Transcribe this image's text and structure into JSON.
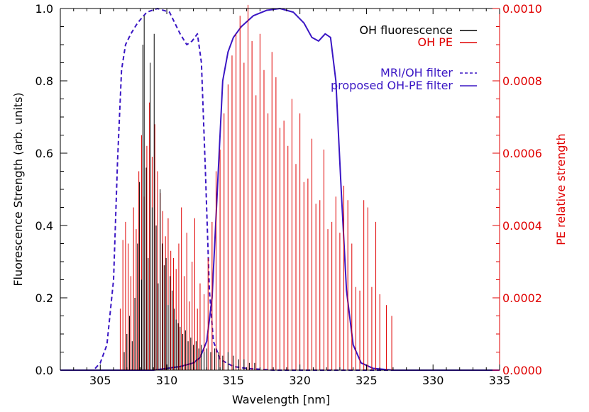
{
  "chart_data": {
    "type": "line",
    "title": "",
    "xlabel": "Wavelength [nm]",
    "ylabel": "Fluorescence Strength (arb. units)",
    "y2label": "PE relative strength",
    "xlim": [
      302,
      335
    ],
    "ylim": [
      0,
      1.0
    ],
    "y2lim": [
      0,
      0.001
    ],
    "xticks": [
      305,
      310,
      315,
      320,
      325,
      330,
      335
    ],
    "xtick_labels": [
      "305",
      "310",
      "315",
      "320",
      "325",
      "330",
      "335"
    ],
    "yticks": [
      0.0,
      0.2,
      0.4,
      0.6,
      0.8,
      1.0
    ],
    "ytick_labels": [
      "0.0",
      "0.2",
      "0.4",
      "0.6",
      "0.8",
      "1.0"
    ],
    "y2ticks": [
      0.0,
      0.0002,
      0.0004,
      0.0006,
      0.0008,
      0.001
    ],
    "y2tick_labels": [
      "0.0000",
      "0.0002",
      "0.0004",
      "0.0006",
      "0.0008",
      "0.0010"
    ],
    "colors": {
      "fluorescence": "#000000",
      "pe": "#e00000",
      "filter": "#3a16c4",
      "axis_left": "#000000",
      "axis_right": "#e00000"
    },
    "legend_position": "top-right",
    "legend": [
      {
        "label": "OH fluorescence",
        "series": "oh_fluorescence"
      },
      {
        "label": "OH PE",
        "series": "oh_pe"
      },
      {
        "label": "MRI/OH filter",
        "series": "mri_oh_filter"
      },
      {
        "label": "proposed OH-PE filter",
        "series": "proposed_oh_pe_filter"
      }
    ],
    "series": [
      {
        "id": "mri_oh_filter",
        "name": "MRI/OH filter",
        "axis": "left",
        "style": "dashed",
        "x": [
          302,
          304.5,
          305.0,
          305.5,
          306.0,
          306.3,
          306.6,
          306.9,
          307.3,
          307.8,
          308.5,
          309.3,
          310.2,
          311.0,
          311.5,
          311.9,
          312.3,
          312.6,
          312.9,
          313.2,
          313.5,
          314.0,
          315.0,
          316.0,
          318.0,
          335.0
        ],
        "y": [
          0.0,
          0.0,
          0.02,
          0.07,
          0.25,
          0.58,
          0.83,
          0.9,
          0.93,
          0.96,
          0.99,
          1.0,
          0.99,
          0.93,
          0.9,
          0.91,
          0.93,
          0.85,
          0.55,
          0.22,
          0.08,
          0.03,
          0.01,
          0.005,
          0.0,
          0.0
        ]
      },
      {
        "id": "proposed_oh_pe_filter",
        "name": "proposed OH-PE filter",
        "axis": "left",
        "style": "solid",
        "x": [
          302,
          309.0,
          310.0,
          311.0,
          312.0,
          312.5,
          313.0,
          313.4,
          313.8,
          314.2,
          314.6,
          315.0,
          315.6,
          316.5,
          317.5,
          318.5,
          319.5,
          320.3,
          320.9,
          321.4,
          321.9,
          322.3,
          322.7,
          323.1,
          323.5,
          324.0,
          324.6,
          325.5,
          327.0,
          335.0
        ],
        "y": [
          0.0,
          0.0,
          0.005,
          0.01,
          0.02,
          0.035,
          0.08,
          0.2,
          0.5,
          0.8,
          0.88,
          0.92,
          0.95,
          0.98,
          0.995,
          1.0,
          0.99,
          0.96,
          0.92,
          0.91,
          0.93,
          0.92,
          0.8,
          0.5,
          0.22,
          0.07,
          0.02,
          0.005,
          0.0,
          0.0
        ]
      },
      {
        "id": "oh_pe",
        "name": "OH PE",
        "axis": "right",
        "style": "sticks",
        "x": [
          306.5,
          306.7,
          306.9,
          307.1,
          307.3,
          307.5,
          307.7,
          307.9,
          308.1,
          308.3,
          308.5,
          308.7,
          308.9,
          309.1,
          309.3,
          309.5,
          309.7,
          309.9,
          310.1,
          310.3,
          310.5,
          310.7,
          310.9,
          311.1,
          311.3,
          311.5,
          311.7,
          311.9,
          312.1,
          312.3,
          312.5,
          312.8,
          313.1,
          313.4,
          313.7,
          314.0,
          314.3,
          314.6,
          314.9,
          315.2,
          315.5,
          315.8,
          316.1,
          316.4,
          316.7,
          317.0,
          317.3,
          317.6,
          317.9,
          318.2,
          318.5,
          318.8,
          319.1,
          319.4,
          319.7,
          320.0,
          320.3,
          320.6,
          320.9,
          321.2,
          321.5,
          321.8,
          322.1,
          322.4,
          322.7,
          323.0,
          323.3,
          323.6,
          323.9,
          324.2,
          324.5,
          324.8,
          325.1,
          325.4,
          325.7,
          326.0,
          326.5,
          326.9
        ],
        "y": [
          0.00017,
          0.00036,
          0.00041,
          0.00035,
          0.00026,
          0.00045,
          0.00039,
          0.00055,
          0.00065,
          0.00048,
          0.00062,
          0.00074,
          0.00059,
          0.00068,
          0.00055,
          0.00049,
          0.00044,
          0.00037,
          0.00042,
          0.00033,
          0.00031,
          0.00028,
          0.00035,
          0.00045,
          0.00026,
          0.00038,
          0.00019,
          0.0003,
          0.00042,
          0.00017,
          0.00024,
          0.00021,
          0.00031,
          0.00041,
          0.00055,
          0.00061,
          0.00071,
          0.00079,
          0.00087,
          0.00093,
          0.00098,
          0.00085,
          0.00101,
          0.00091,
          0.00076,
          0.00093,
          0.00083,
          0.00071,
          0.00088,
          0.00081,
          0.00067,
          0.00069,
          0.00062,
          0.00075,
          0.00057,
          0.00071,
          0.00052,
          0.00053,
          0.00064,
          0.00046,
          0.00047,
          0.00061,
          0.00039,
          0.00041,
          0.00048,
          0.00038,
          0.00051,
          0.00047,
          0.00035,
          0.00023,
          0.00022,
          0.00047,
          0.00045,
          0.00023,
          0.00041,
          0.00021,
          0.00018,
          0.00015
        ]
      },
      {
        "id": "oh_fluorescence",
        "name": "OH fluorescence",
        "axis": "left",
        "style": "sticks",
        "x": [
          306.8,
          307.0,
          307.2,
          307.4,
          307.6,
          307.8,
          307.95,
          308.1,
          308.2,
          308.3,
          308.45,
          308.6,
          308.75,
          308.9,
          309.05,
          309.2,
          309.35,
          309.5,
          309.65,
          309.8,
          309.95,
          310.1,
          310.25,
          310.4,
          310.55,
          310.7,
          310.85,
          311.0,
          311.2,
          311.4,
          311.6,
          311.8,
          312.0,
          312.2,
          312.4,
          312.6,
          312.8,
          313.0,
          313.3,
          313.6,
          313.9,
          314.2,
          314.6,
          315.0,
          315.4,
          315.8,
          316.2,
          316.6
        ],
        "y": [
          0.05,
          0.1,
          0.15,
          0.08,
          0.2,
          0.35,
          0.52,
          0.25,
          0.9,
          0.98,
          0.56,
          0.31,
          0.85,
          0.45,
          0.93,
          0.4,
          0.24,
          0.5,
          0.35,
          0.29,
          0.31,
          0.18,
          0.26,
          0.22,
          0.17,
          0.14,
          0.13,
          0.12,
          0.1,
          0.11,
          0.08,
          0.09,
          0.07,
          0.08,
          0.06,
          0.07,
          0.05,
          0.06,
          0.05,
          0.06,
          0.05,
          0.04,
          0.05,
          0.04,
          0.03,
          0.03,
          0.02,
          0.02
        ]
      }
    ]
  }
}
